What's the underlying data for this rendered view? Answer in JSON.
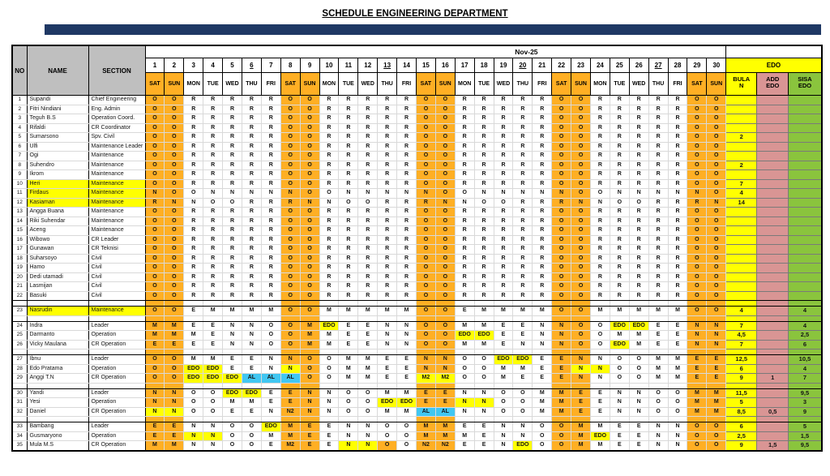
{
  "title": "SCHEDULE ENGINEERING DEPARTMENT",
  "month_label": "Nov-25",
  "columns": {
    "no": "NO",
    "name": "NAME",
    "section": "SECTION",
    "edo_group": "EDO",
    "bulan": "BULAN",
    "add_edo": "ADD EDO",
    "sisa_edo": "SISA EDO"
  },
  "underlined_days": [
    6,
    13,
    20,
    27
  ],
  "days": [
    {
      "num": "1",
      "dow": "SAT"
    },
    {
      "num": "2",
      "dow": "SUN"
    },
    {
      "num": "3",
      "dow": "MON"
    },
    {
      "num": "4",
      "dow": "TUE"
    },
    {
      "num": "5",
      "dow": "WED"
    },
    {
      "num": "6",
      "dow": "THU"
    },
    {
      "num": "7",
      "dow": "FRI"
    },
    {
      "num": "8",
      "dow": "SAT"
    },
    {
      "num": "9",
      "dow": "SUN"
    },
    {
      "num": "10",
      "dow": "MON"
    },
    {
      "num": "11",
      "dow": "TUE"
    },
    {
      "num": "12",
      "dow": "WED"
    },
    {
      "num": "13",
      "dow": "THU"
    },
    {
      "num": "14",
      "dow": "FRI"
    },
    {
      "num": "15",
      "dow": "SAT"
    },
    {
      "num": "16",
      "dow": "SUN"
    },
    {
      "num": "17",
      "dow": "MON"
    },
    {
      "num": "18",
      "dow": "TUE"
    },
    {
      "num": "19",
      "dow": "WED"
    },
    {
      "num": "20",
      "dow": "THU"
    },
    {
      "num": "21",
      "dow": "FRI"
    },
    {
      "num": "22",
      "dow": "SAT"
    },
    {
      "num": "23",
      "dow": "SUN"
    },
    {
      "num": "24",
      "dow": "MON"
    },
    {
      "num": "25",
      "dow": "TUE"
    },
    {
      "num": "26",
      "dow": "WED"
    },
    {
      "num": "27",
      "dow": "THU"
    },
    {
      "num": "28",
      "dow": "FRI"
    },
    {
      "num": "29",
      "dow": "SAT"
    },
    {
      "num": "30",
      "dow": "SUN"
    }
  ],
  "colors": {
    "weekend": "#FFAF24",
    "highlight": "#FFFF00",
    "cyan": "#41C7F2",
    "bulan_bg": "#FFFF00",
    "add_bg": "#D99594",
    "sisa_bg": "#8AC43D",
    "header_gray": "#BFBFBF",
    "navy_bar": "#1F3864"
  },
  "rows": [
    {
      "no": "1",
      "name": "Supandi",
      "section": "Chief Engineering",
      "hl": false,
      "cells": "O O R R R R R O O R R R R R O O R R R R R O O R R R R R O O",
      "bulan": "",
      "add": "",
      "sisa": ""
    },
    {
      "no": "2",
      "name": "Fitri Nindiani",
      "section": "Eng. Admin",
      "hl": false,
      "cells": "O O R R R R R O O R R R R R O O R R R R R O O R R R R R O O",
      "bulan": "",
      "add": "",
      "sisa": ""
    },
    {
      "no": "3",
      "name": "Teguh B.S",
      "section": "Operation Coord.",
      "hl": false,
      "cells": "O O R R R R R O O R R R R R O O R R R R R O O R R R R R O O",
      "bulan": "",
      "add": "",
      "sisa": ""
    },
    {
      "no": "4",
      "name": "Rifaldi",
      "section": "CR Coordinator",
      "hl": false,
      "cells": "O O R R R R R O O R R R R R O O R R R R R O O R R R R R O O",
      "bulan": "",
      "add": "",
      "sisa": ""
    },
    {
      "no": "5",
      "name": "Sumarsono",
      "section": "Spv. Civil",
      "hl": false,
      "cells": "O O R R R R R O O R R R R R O O R R R R R O O R R R R R O O",
      "bulan": "2",
      "add": "",
      "sisa": ""
    },
    {
      "no": "6",
      "name": "Ulfi",
      "section": "Maintenance Leader",
      "hl": false,
      "cells": "O O R R R R R O O R R R R R O O R R R R R O O R R R R R O O",
      "bulan": "",
      "add": "",
      "sisa": ""
    },
    {
      "no": "7",
      "name": "Ogi",
      "section": "Maintenance",
      "hl": false,
      "cells": "O O R R R R R O O R R R R R O O R R R R R O O R R R R R O O",
      "bulan": "",
      "add": "",
      "sisa": ""
    },
    {
      "no": "8",
      "name": "Suhendro",
      "section": "Maintenance",
      "hl": false,
      "cells": "O O R R R R R O O R R R R R O O R R R R R O O R R R R R O O",
      "bulan": "2",
      "add": "",
      "sisa": ""
    },
    {
      "no": "9",
      "name": "Ikrom",
      "section": "Maintenance",
      "hl": false,
      "cells": "O O R R R R R O O R R R R R O O R R R R R O O R R R R R O O",
      "bulan": "",
      "add": "",
      "sisa": ""
    },
    {
      "no": "10",
      "name": "Heri",
      "section": "Maintenance",
      "hl": true,
      "cells": "O O R R R R R O O R R R R R O O R R R R R O O R R R R R O O",
      "bulan": "7",
      "add": "",
      "sisa": ""
    },
    {
      "no": "11",
      "name": "Firdaus",
      "section": "Maintenance",
      "hl": true,
      "cells": "N O O N N N N N O O N N N N N O O N N N N N O O N N N N N O",
      "bulan": "4",
      "add": "",
      "sisa": ""
    },
    {
      "no": "12",
      "name": "Kasiaman",
      "section": "Maintenance",
      "hl": true,
      "cells": "R N N O O R R R N N O O R R R N N O O R R R N N O O R R R N",
      "bulan": "14",
      "add": "",
      "sisa": ""
    },
    {
      "no": "13",
      "name": "Angga Buana",
      "section": "Maintenance",
      "hl": false,
      "cells": "O O R R R R R O O R R R R R O O R R R R R O O R R R R R O O",
      "bulan": "",
      "add": "",
      "sisa": ""
    },
    {
      "no": "14",
      "name": "Riki Suhendar",
      "section": "Maintenance",
      "hl": false,
      "cells": "O O R R R R R O O R R R R R O O R R R R R O O R R R R R O O",
      "bulan": "",
      "add": "",
      "sisa": ""
    },
    {
      "no": "15",
      "name": "Aceng",
      "section": "Maintenance",
      "hl": false,
      "cells": "O O R R R R R O O R R R R R O O R R R R R O O R R R R R O O",
      "bulan": "",
      "add": "",
      "sisa": ""
    },
    {
      "no": "16",
      "name": "Wibowo",
      "section": "CR Leader",
      "hl": false,
      "cells": "O O R R R R R O O R R R R R O O R R R R R O O R R R R R O O",
      "bulan": "",
      "add": "",
      "sisa": ""
    },
    {
      "no": "17",
      "name": "Gunawan",
      "section": "CR Teknisi",
      "hl": false,
      "cells": "O O R R R R R O O R R R R R O O R R R R R O O R R R R R O O",
      "bulan": "",
      "add": "",
      "sisa": ""
    },
    {
      "no": "18",
      "name": "Suharsoyo",
      "section": "Civil",
      "hl": false,
      "cells": "O O R R R R R O O R R R R R O O R R R R R O O R R R R R O O",
      "bulan": "",
      "add": "",
      "sisa": ""
    },
    {
      "no": "19",
      "name": "Hamo",
      "section": "Civil",
      "hl": false,
      "cells": "O O R R R R R O O R R R R R O O R R R R R O O R R R R R O O",
      "bulan": "",
      "add": "",
      "sisa": ""
    },
    {
      "no": "20",
      "name": "Dedi utamadi",
      "section": "Civil",
      "hl": false,
      "cells": "O O R R R R R O O R R R R R O O R R R R R O O R R R R R O O",
      "bulan": "",
      "add": "",
      "sisa": ""
    },
    {
      "no": "21",
      "name": "Lasmijan",
      "section": "Civil",
      "hl": false,
      "cells": "O O R R R R R O O R R R R R O O R R R R R O O R R R R R O O",
      "bulan": "",
      "add": "",
      "sisa": ""
    },
    {
      "no": "22",
      "name": "Basuki",
      "section": "Civil",
      "hl": false,
      "cells": "O O R R R R R O O R R R R R O O R R R R R O O R R R R R O O",
      "bulan": "",
      "add": "",
      "sisa": ""
    },
    {
      "gap": true
    },
    {
      "no": "23",
      "name": "Nasrudin",
      "section": "Maintenance",
      "hl": true,
      "cells": "O O E M M M M O O M M M M M O O E M M M M O O M M M M M O O",
      "bulan": "4",
      "add": "",
      "sisa": "4"
    },
    {
      "gap": true
    },
    {
      "no": "24",
      "name": "Indra",
      "section": "Leader",
      "hl": false,
      "cells": "M M E E N N O O M EDO*y E E N N O O M M E E N N O O EDO*y EDO*y E E N N",
      "bulan": "7",
      "add": "",
      "sisa": "4"
    },
    {
      "no": "25",
      "name": "Darmanto",
      "section": "Operation",
      "hl": false,
      "cells": "M M M E N N O O M M E E N N O O EDO*y EDO*y E E N N O O M M E E N N",
      "bulan": "4,5",
      "add": "",
      "sisa": "2,5"
    },
    {
      "no": "26",
      "name": "Vicky Maulana",
      "section": "CR Operation",
      "hl": false,
      "cells": "E E E E N N O O M M E E N N O O M M E N N N O O EDO*y M E E N N",
      "bulan": "7",
      "add": "",
      "sisa": "6"
    },
    {
      "gap": true
    },
    {
      "no": "27",
      "name": "Ibnu",
      "section": "Leader",
      "hl": false,
      "cells": "O O M M E E N N O O M M E E N N O O EDO*y EDO*y E E N N O O M M E E",
      "bulan": "12,5",
      "add": "",
      "sisa": "10,5"
    },
    {
      "no": "28",
      "name": "Edo Pratama",
      "section": "Operation",
      "hl": false,
      "cells": "O O EDO*y EDO*y E E N N*y O O M M E E N N O O M M E E N*y N*y O O M M E E",
      "bulan": "6",
      "add": "",
      "sisa": "4"
    },
    {
      "no": "29",
      "name": "Anggi T.N",
      "section": "CR Operation",
      "hl": false,
      "cells": "O O EDO*y EDO*y EDO*y AL*c AL*c AL*c O O M M E E M2*y M2*y O O M E E E N N O O M M E E",
      "bulan": "9",
      "add": "1",
      "sisa": "7"
    },
    {
      "gap": true
    },
    {
      "no": "30",
      "name": "Yandi",
      "section": "Leader",
      "hl": false,
      "cells": "N N O O EDO*y EDO*y E E N N O O M M E E N N O O M M E E N N O O M M",
      "bulan": "11,5",
      "add": "",
      "sisa": "9,5"
    },
    {
      "no": "31",
      "name": "Yesi",
      "section": "Operation",
      "hl": false,
      "cells": "N N O O M M E E N N O O EDO*y EDO*y E E N*y N*y O O M M E E N N O O M M",
      "bulan": "5",
      "add": "",
      "sisa": "3"
    },
    {
      "no": "32",
      "name": "Daniel",
      "section": "CR Operation",
      "hl": false,
      "cells": "N*y N*y O O E E N N2 N N O O M M AL*c AL*c N N O O M M E E N N O O M M",
      "bulan": "8,5",
      "add": "0,5",
      "sisa": "9"
    },
    {
      "gap": true
    },
    {
      "no": "33",
      "name": "Bambang",
      "section": "Leader",
      "hl": false,
      "cells": "E E N N O O EDO*y M E E N N O O M M E E N N O O M M E E N N O O",
      "bulan": "6",
      "add": "",
      "sisa": "5"
    },
    {
      "no": "34",
      "name": "Gusmaryono",
      "section": "Operation",
      "hl": false,
      "cells": "E E N*y N*y O O M M E E N N O O M M M E N N O O M EDO*y E E N N O O",
      "bulan": "2,5",
      "add": "",
      "sisa": "1,5"
    },
    {
      "no": "35",
      "name": "Mula M.S",
      "section": "CR Operation",
      "hl": false,
      "cells": "M M N N O O E M2 E E N*y N*y O*o O N2 N2 E E N EDO*y O O M M E E N N O O",
      "bulan": "9",
      "add": "1,5",
      "sisa": "9,5"
    }
  ]
}
